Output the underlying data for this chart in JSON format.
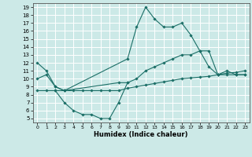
{
  "xlabel": "Humidex (Indice chaleur)",
  "xlim": [
    -0.5,
    23.5
  ],
  "ylim": [
    4.5,
    19.5
  ],
  "xticks": [
    0,
    1,
    2,
    3,
    4,
    5,
    6,
    7,
    8,
    9,
    10,
    11,
    12,
    13,
    14,
    15,
    16,
    17,
    18,
    19,
    20,
    21,
    22,
    23
  ],
  "yticks": [
    5,
    6,
    7,
    8,
    9,
    10,
    11,
    12,
    13,
    14,
    15,
    16,
    17,
    18,
    19
  ],
  "bg_color": "#cce9e7",
  "grid_color": "#b0d8d6",
  "line_color": "#1a6e66",
  "series": [
    {
      "x": [
        0,
        1,
        2,
        3,
        10,
        11,
        12,
        13,
        14,
        15,
        16,
        17,
        18,
        19,
        20,
        21,
        22,
        23
      ],
      "y": [
        12,
        11,
        9,
        8.5,
        12.5,
        16.5,
        19,
        17.5,
        16.5,
        16.5,
        17,
        15.5,
        13.5,
        11.5,
        10.5,
        11,
        10.5,
        10.5
      ]
    },
    {
      "x": [
        2,
        3,
        4,
        5,
        6,
        7,
        8,
        9,
        10
      ],
      "y": [
        8.5,
        7,
        6,
        5.5,
        5.5,
        5,
        5,
        7,
        9.5
      ]
    },
    {
      "x": [
        0,
        1,
        2,
        3,
        9,
        10,
        11,
        12,
        13,
        14,
        15,
        16,
        17,
        18,
        19,
        20,
        21,
        22,
        23
      ],
      "y": [
        10,
        10.5,
        9,
        8.5,
        9.5,
        9.5,
        10,
        11,
        11.5,
        12,
        12.5,
        13,
        13,
        13.5,
        13.5,
        10.5,
        10.5,
        10.5,
        10.5
      ]
    },
    {
      "x": [
        0,
        1,
        2,
        3,
        4,
        5,
        6,
        7,
        8,
        9,
        10,
        11,
        12,
        13,
        14,
        15,
        16,
        17,
        18,
        19,
        20,
        21,
        22,
        23
      ],
      "y": [
        8.5,
        8.5,
        8.5,
        8.5,
        8.5,
        8.5,
        8.5,
        8.5,
        8.5,
        8.5,
        8.8,
        9.0,
        9.2,
        9.4,
        9.6,
        9.8,
        10.0,
        10.1,
        10.2,
        10.3,
        10.5,
        10.7,
        10.8,
        11.0
      ]
    }
  ]
}
